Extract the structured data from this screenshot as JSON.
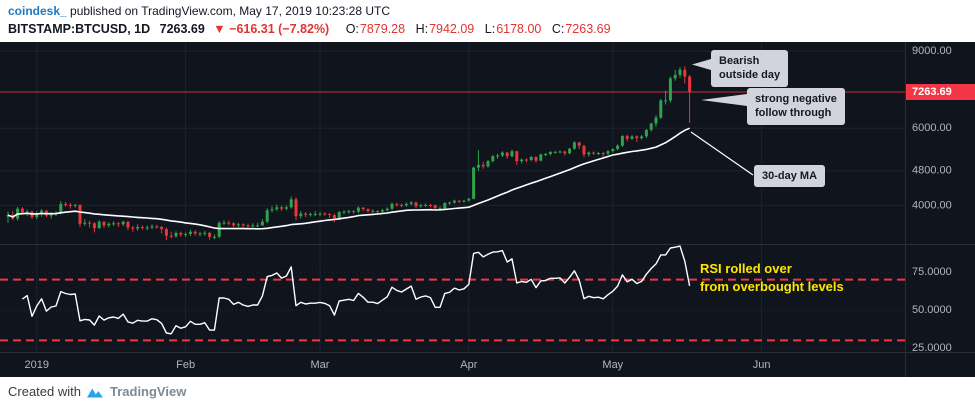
{
  "header": {
    "credit_source": "coindesk_",
    "credit_rest": " published on TradingView.com, May 17, 2019 10:23:28 UTC",
    "symbol": "BITSTAMP:BTCUSD, 1D",
    "last_price": "7263.69",
    "change": "▼ −616.31 (−7.82%)",
    "ohlc": [
      {
        "label": "O:",
        "value": "7879.28"
      },
      {
        "label": "H:",
        "value": "7942.09"
      },
      {
        "label": "L:",
        "value": "6178.00"
      },
      {
        "label": "C:",
        "value": "7263.69"
      }
    ]
  },
  "annotations": {
    "bearish": {
      "line1": "Bearish",
      "line2": "outside day"
    },
    "follow_through": {
      "line1": "strong negative",
      "line2": "follow through"
    },
    "ma_label": {
      "text": "30-day MA"
    },
    "rsi_note": {
      "line1": "RSI rolled over",
      "line2": "from overbought levels"
    }
  },
  "footer": {
    "created_with": "Created with",
    "brand": "TradingView"
  },
  "colors": {
    "background": "#10141d",
    "grid": "#1c2230",
    "axis_text": "#b2b5be",
    "up": "#30a24c",
    "down": "#e8363d",
    "accent_red": "#f23645",
    "ma": "#ffffff",
    "rsi": "#ffffff",
    "annotation_bg": "#d1d4dc",
    "highlight_yellow": "#ffe600",
    "link_blue": "#1f7ac2",
    "brand_blue": "#2ba3e8"
  },
  "chart_data": {
    "type": "candlestick",
    "title": "BITSTAMP:BTCUSD 1D candles with 30-day MA (main pane) and 14-day RSI (lower pane)",
    "y_axis": {
      "scale": "log",
      "side": "right"
    },
    "price_line": 7263.69,
    "indicators": {
      "sma_period": 30,
      "rsi_period": 14,
      "rsi_bands": [
        70,
        30
      ]
    },
    "price_axis": {
      "labels": [
        {
          "text": "9000.00",
          "value": 9000
        },
        {
          "text": "6000.00",
          "value": 6000
        },
        {
          "text": "4800.00",
          "value": 4800
        },
        {
          "text": "4000.00",
          "value": 4000
        }
      ],
      "badge": {
        "text": "7263.69",
        "value": 7263.69
      }
    },
    "rsi_axis": {
      "labels": [
        {
          "text": "75.0000",
          "value": 75
        },
        {
          "text": "50.0000",
          "value": 50
        },
        {
          "text": "25.0000",
          "value": 25
        }
      ]
    },
    "time_axis": {
      "ticks": [
        {
          "label": "2019",
          "candle_index": 6
        },
        {
          "label": "Feb",
          "candle_index": 37
        },
        {
          "label": "Mar",
          "candle_index": 65
        },
        {
          "label": "Apr",
          "candle_index": 96
        },
        {
          "label": "May",
          "candle_index": 126
        },
        {
          "label": "Jun",
          "candle_index": 157
        }
      ]
    },
    "ohlc": [
      [
        3770,
        3870,
        3650,
        3800
      ],
      [
        3800,
        3880,
        3700,
        3730
      ],
      [
        3730,
        3970,
        3690,
        3930
      ],
      [
        3930,
        3960,
        3810,
        3850
      ],
      [
        3850,
        3910,
        3780,
        3870
      ],
      [
        3870,
        3890,
        3720,
        3760
      ],
      [
        3760,
        3880,
        3720,
        3830
      ],
      [
        3830,
        3920,
        3770,
        3890
      ],
      [
        3890,
        3900,
        3760,
        3790
      ],
      [
        3790,
        3860,
        3730,
        3830
      ],
      [
        3830,
        3880,
        3780,
        3840
      ],
      [
        3840,
        4090,
        3820,
        4030
      ],
      [
        4030,
        4070,
        3970,
        4010
      ],
      [
        4010,
        4050,
        3930,
        4000
      ],
      [
        4000,
        4030,
        3950,
        4010
      ],
      [
        4010,
        4020,
        3570,
        3630
      ],
      [
        3630,
        3720,
        3590,
        3650
      ],
      [
        3650,
        3690,
        3560,
        3640
      ],
      [
        3640,
        3660,
        3470,
        3550
      ],
      [
        3550,
        3700,
        3530,
        3670
      ],
      [
        3670,
        3680,
        3550,
        3600
      ],
      [
        3600,
        3660,
        3560,
        3630
      ],
      [
        3630,
        3680,
        3590,
        3640
      ],
      [
        3640,
        3660,
        3570,
        3620
      ],
      [
        3620,
        3690,
        3590,
        3670
      ],
      [
        3670,
        3680,
        3510,
        3560
      ],
      [
        3560,
        3590,
        3480,
        3540
      ],
      [
        3540,
        3620,
        3500,
        3570
      ],
      [
        3570,
        3600,
        3520,
        3560
      ],
      [
        3560,
        3600,
        3510,
        3560
      ],
      [
        3560,
        3620,
        3530,
        3580
      ],
      [
        3580,
        3610,
        3540,
        3570
      ],
      [
        3570,
        3590,
        3450,
        3530
      ],
      [
        3530,
        3560,
        3330,
        3410
      ],
      [
        3410,
        3480,
        3360,
        3400
      ],
      [
        3400,
        3490,
        3370,
        3460
      ],
      [
        3460,
        3480,
        3390,
        3430
      ],
      [
        3430,
        3470,
        3390,
        3440
      ],
      [
        3440,
        3520,
        3400,
        3480
      ],
      [
        3480,
        3510,
        3410,
        3450
      ],
      [
        3450,
        3480,
        3400,
        3450
      ],
      [
        3450,
        3500,
        3410,
        3460
      ],
      [
        3460,
        3480,
        3340,
        3390
      ],
      [
        3390,
        3430,
        3350,
        3390
      ],
      [
        3390,
        3680,
        3370,
        3650
      ],
      [
        3650,
        3700,
        3610,
        3650
      ],
      [
        3650,
        3690,
        3600,
        3640
      ],
      [
        3640,
        3660,
        3570,
        3600
      ],
      [
        3600,
        3650,
        3560,
        3620
      ],
      [
        3620,
        3640,
        3560,
        3600
      ],
      [
        3600,
        3630,
        3550,
        3590
      ],
      [
        3590,
        3640,
        3560,
        3600
      ],
      [
        3600,
        3650,
        3570,
        3600
      ],
      [
        3600,
        3720,
        3590,
        3670
      ],
      [
        3670,
        3940,
        3640,
        3900
      ],
      [
        3900,
        3980,
        3850,
        3920
      ],
      [
        3920,
        4020,
        3880,
        3960
      ],
      [
        3960,
        3990,
        3880,
        3930
      ],
      [
        3930,
        4000,
        3900,
        3960
      ],
      [
        3960,
        4190,
        3930,
        4130
      ],
      [
        4130,
        4170,
        3700,
        3780
      ],
      [
        3780,
        3880,
        3730,
        3830
      ],
      [
        3830,
        3860,
        3760,
        3810
      ],
      [
        3810,
        3850,
        3770,
        3820
      ],
      [
        3820,
        3880,
        3780,
        3820
      ],
      [
        3820,
        3860,
        3780,
        3830
      ],
      [
        3830,
        3860,
        3790,
        3820
      ],
      [
        3820,
        3840,
        3740,
        3800
      ],
      [
        3800,
        3830,
        3660,
        3710
      ],
      [
        3710,
        3880,
        3700,
        3860
      ],
      [
        3860,
        3900,
        3820,
        3870
      ],
      [
        3870,
        3910,
        3830,
        3880
      ],
      [
        3880,
        3900,
        3830,
        3870
      ],
      [
        3870,
        3980,
        3840,
        3950
      ],
      [
        3950,
        3970,
        3880,
        3920
      ],
      [
        3920,
        3940,
        3850,
        3880
      ],
      [
        3880,
        3920,
        3850,
        3880
      ],
      [
        3880,
        3900,
        3830,
        3870
      ],
      [
        3870,
        3930,
        3840,
        3900
      ],
      [
        3900,
        3960,
        3870,
        3930
      ],
      [
        3930,
        4060,
        3900,
        4030
      ],
      [
        4030,
        4050,
        3970,
        4010
      ],
      [
        4010,
        4040,
        3960,
        4000
      ],
      [
        4000,
        4060,
        3970,
        4030
      ],
      [
        4030,
        4090,
        4000,
        4060
      ],
      [
        4060,
        4080,
        3940,
        3980
      ],
      [
        3980,
        4030,
        3950,
        4000
      ],
      [
        4000,
        4040,
        3970,
        4010
      ],
      [
        4010,
        4030,
        3960,
        4000
      ],
      [
        4000,
        4020,
        3900,
        3940
      ],
      [
        3940,
        3980,
        3910,
        3940
      ],
      [
        3940,
        4070,
        3920,
        4050
      ],
      [
        4050,
        4080,
        4010,
        4060
      ],
      [
        4060,
        4120,
        4030,
        4100
      ],
      [
        4100,
        4110,
        4050,
        4090
      ],
      [
        4090,
        4120,
        4060,
        4100
      ],
      [
        4100,
        4160,
        4080,
        4140
      ],
      [
        4140,
        4900,
        4130,
        4880
      ],
      [
        4880,
        5350,
        4790,
        4950
      ],
      [
        4950,
        5030,
        4850,
        4910
      ],
      [
        4910,
        5080,
        4880,
        5050
      ],
      [
        5050,
        5210,
        5010,
        5180
      ],
      [
        5180,
        5250,
        5110,
        5200
      ],
      [
        5200,
        5320,
        5160,
        5280
      ],
      [
        5280,
        5300,
        5110,
        5180
      ],
      [
        5180,
        5360,
        5150,
        5320
      ],
      [
        5320,
        5330,
        4950,
        5050
      ],
      [
        5050,
        5120,
        4990,
        5090
      ],
      [
        5090,
        5120,
        5020,
        5080
      ],
      [
        5080,
        5190,
        5040,
        5160
      ],
      [
        5160,
        5180,
        5000,
        5060
      ],
      [
        5060,
        5250,
        5040,
        5230
      ],
      [
        5230,
        5270,
        5180,
        5240
      ],
      [
        5240,
        5320,
        5200,
        5300
      ],
      [
        5300,
        5330,
        5250,
        5300
      ],
      [
        5300,
        5340,
        5260,
        5310
      ],
      [
        5310,
        5330,
        5200,
        5260
      ],
      [
        5260,
        5410,
        5230,
        5390
      ],
      [
        5390,
        5600,
        5360,
        5570
      ],
      [
        5570,
        5590,
        5380,
        5470
      ],
      [
        5470,
        5500,
        5150,
        5230
      ],
      [
        5230,
        5310,
        5170,
        5280
      ],
      [
        5280,
        5310,
        5220,
        5260
      ],
      [
        5260,
        5300,
        5210,
        5270
      ],
      [
        5270,
        5300,
        5160,
        5250
      ],
      [
        5250,
        5350,
        5210,
        5320
      ],
      [
        5320,
        5400,
        5280,
        5380
      ],
      [
        5380,
        5510,
        5340,
        5480
      ],
      [
        5480,
        5790,
        5440,
        5760
      ],
      [
        5760,
        5800,
        5600,
        5680
      ],
      [
        5680,
        5790,
        5640,
        5750
      ],
      [
        5750,
        5780,
        5580,
        5700
      ],
      [
        5700,
        5790,
        5650,
        5750
      ],
      [
        5750,
        5980,
        5700,
        5950
      ],
      [
        5950,
        6180,
        5900,
        6150
      ],
      [
        6150,
        6430,
        6050,
        6350
      ],
      [
        6350,
        7000,
        6300,
        6950
      ],
      [
        6950,
        7320,
        6800,
        6950
      ],
      [
        6950,
        7880,
        6870,
        7800
      ],
      [
        7800,
        8160,
        7710,
        7950
      ],
      [
        7950,
        8280,
        7830,
        8170
      ],
      [
        8170,
        8320,
        7600,
        7880
      ],
      [
        7879.28,
        7942.09,
        6178.0,
        7263.69
      ]
    ]
  }
}
